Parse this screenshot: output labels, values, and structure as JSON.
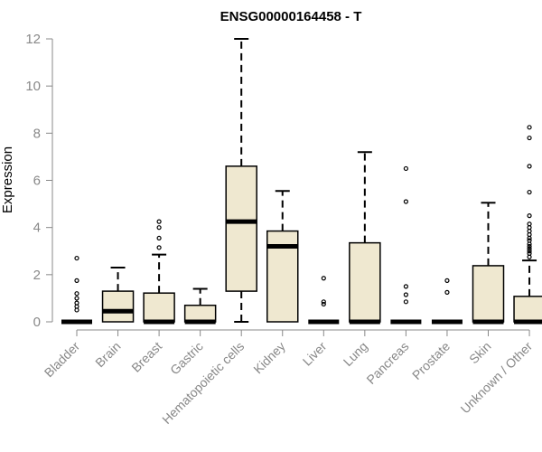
{
  "chart_data": {
    "type": "boxplot",
    "title": "ENSG00000164458 - T",
    "xlabel": "",
    "ylabel": "Expression",
    "ylim": [
      0,
      12
    ],
    "yticks": [
      0,
      2,
      4,
      6,
      8,
      10,
      12
    ],
    "grid": false,
    "legend": "none",
    "categories": [
      "Bladder",
      "Brain",
      "Breast",
      "Gastric",
      "Hematopoietic cells",
      "Kidney",
      "Liver",
      "Lung",
      "Pancreas",
      "Prostate",
      "Skin",
      "Unknown / Other"
    ],
    "boxes": [
      {
        "min": 0,
        "q1": 0,
        "median": 0,
        "q3": 0,
        "max": 0,
        "outliers": [
          0.5,
          0.65,
          0.8,
          1.0,
          1.2,
          1.75,
          2.7
        ]
      },
      {
        "min": 0,
        "q1": 0,
        "median": 0.45,
        "q3": 1.3,
        "max": 2.3,
        "outliers": []
      },
      {
        "min": 0,
        "q1": 0,
        "median": 0,
        "q3": 1.22,
        "max": 2.85,
        "outliers": [
          3.15,
          3.55,
          4.0,
          4.25
        ]
      },
      {
        "min": 0,
        "q1": 0,
        "median": 0,
        "q3": 0.7,
        "max": 1.4,
        "outliers": []
      },
      {
        "min": 0,
        "q1": 1.3,
        "median": 4.25,
        "q3": 6.6,
        "max": 12.0,
        "outliers": []
      },
      {
        "min": 0,
        "q1": 0,
        "median": 3.2,
        "q3": 3.85,
        "max": 5.55,
        "outliers": []
      },
      {
        "min": 0,
        "q1": 0,
        "median": 0,
        "q3": 0,
        "max": 0,
        "outliers": [
          0.75,
          0.85,
          1.85
        ]
      },
      {
        "min": 0,
        "q1": 0,
        "median": 0,
        "q3": 3.35,
        "max": 7.2,
        "outliers": []
      },
      {
        "min": 0,
        "q1": 0,
        "median": 0,
        "q3": 0,
        "max": 0,
        "outliers": [
          0.85,
          1.15,
          1.5,
          5.1,
          6.5
        ]
      },
      {
        "min": 0,
        "q1": 0,
        "median": 0,
        "q3": 0,
        "max": 0,
        "outliers": [
          1.25,
          1.75
        ]
      },
      {
        "min": 0,
        "q1": 0,
        "median": 0,
        "q3": 2.38,
        "max": 5.05,
        "outliers": []
      },
      {
        "min": 0,
        "q1": 0,
        "median": 0,
        "q3": 1.08,
        "max": 2.6,
        "outliers": [
          2.75,
          2.9,
          3.0,
          3.1,
          3.2,
          3.3,
          3.45,
          3.55,
          3.7,
          3.85,
          4.0,
          4.15,
          4.5,
          5.5,
          6.6,
          7.8,
          8.25
        ]
      }
    ],
    "colors": {
      "box_fill": "#efe8d0",
      "box_stroke": "#000000",
      "axis": "#888888",
      "tick_label": "#888888",
      "title": "#000000"
    }
  }
}
